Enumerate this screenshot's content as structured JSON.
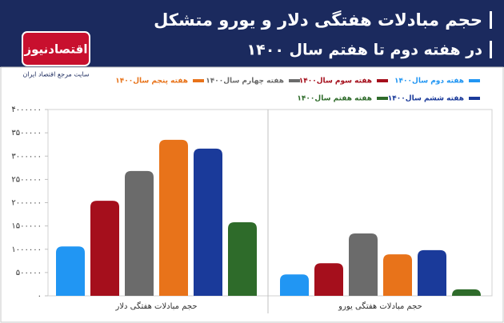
{
  "brand": {
    "name": "اقتصادنیوز",
    "tagline": "سایت مرجع اقتصاد ایران"
  },
  "chart_data": {
    "type": "bar",
    "title": "حجم مبادلات هفتگی دلار و یورو متشکل",
    "subtitle": "در هفته دوم تا هفتم سال ۱۴۰۰",
    "categories": [
      "حجم مبادلات هفتگی دلار",
      "حجم مبادلات هفتگی یورو"
    ],
    "series": [
      {
        "name": "هفته دوم سال۱۴۰۰",
        "color": "#2196f3",
        "values": [
          1060000,
          460000
        ]
      },
      {
        "name": "هفته سوم سال۱۴۰۰",
        "color": "#a50f1c",
        "values": [
          2040000,
          700000
        ]
      },
      {
        "name": "هفته چهارم سال۱۴۰۰",
        "color": "#6b6b6b",
        "values": [
          2680000,
          1340000
        ]
      },
      {
        "name": "هفته پنجم سال۱۴۰۰",
        "color": "#e8731a",
        "values": [
          3350000,
          890000
        ]
      },
      {
        "name": "هفته ششم سال۱۴۰۰",
        "color": "#1a3a9a",
        "values": [
          3160000,
          980000
        ]
      },
      {
        "name": "هفته هفتم سال۱۴۰۰",
        "color": "#2e6b2a",
        "values": [
          1580000,
          140000
        ]
      }
    ],
    "ylim": [
      0,
      4000000
    ],
    "yticks": [
      {
        "value": 0,
        "label": "۰"
      },
      {
        "value": 500000,
        "label": "۵۰۰۰۰۰"
      },
      {
        "value": 1000000,
        "label": "۱۰۰۰۰۰۰"
      },
      {
        "value": 1500000,
        "label": "۱۵۰۰۰۰۰"
      },
      {
        "value": 2000000,
        "label": "۲۰۰۰۰۰۰"
      },
      {
        "value": 2500000,
        "label": "۲۵۰۰۰۰۰"
      },
      {
        "value": 3000000,
        "label": "۳۰۰۰۰۰۰"
      },
      {
        "value": 3500000,
        "label": "۳۵۰۰۰۰۰"
      },
      {
        "value": 4000000,
        "label": "۴۰۰۰۰۰۰"
      }
    ]
  }
}
